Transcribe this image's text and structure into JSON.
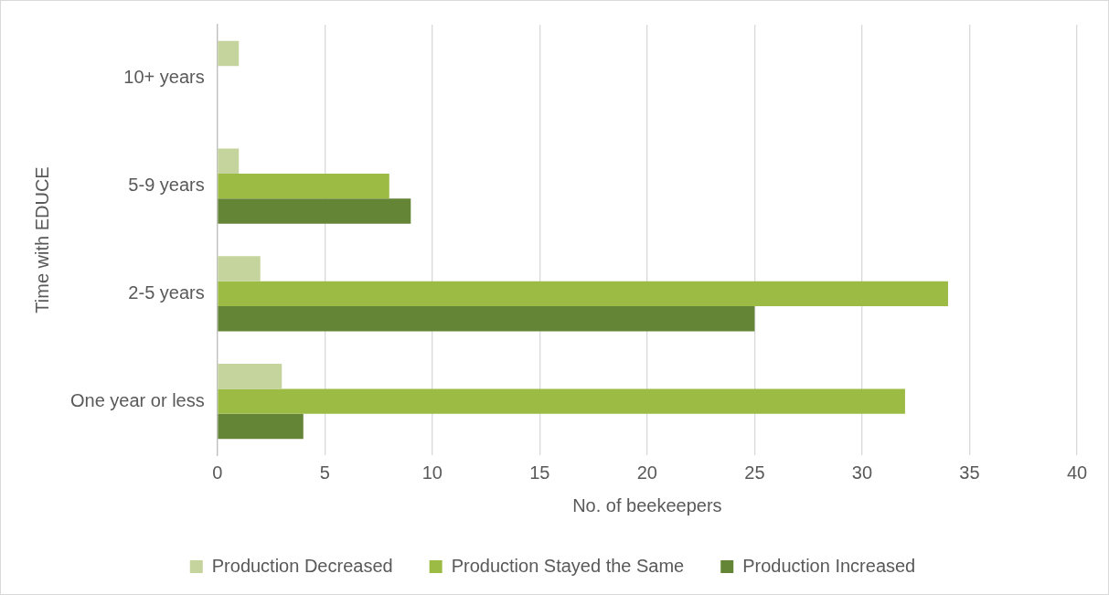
{
  "chart_data": {
    "type": "bar",
    "orientation": "horizontal",
    "xlabel": "No. of beekeepers",
    "ylabel": "Time with EDUCE",
    "categories": [
      "10+ years",
      "5-9 years",
      "2-5 years",
      "One year or less"
    ],
    "series": [
      {
        "name": "Production Decreased",
        "color": "#c5d49c",
        "values": [
          1,
          1,
          2,
          3
        ]
      },
      {
        "name": "Production Stayed the Same",
        "color": "#9bbb45",
        "values": [
          0,
          8,
          34,
          32
        ]
      },
      {
        "name": "Production Increased",
        "color": "#648436",
        "values": [
          0,
          9,
          25,
          4
        ]
      }
    ],
    "xlim": [
      0,
      40
    ],
    "xticks": [
      0,
      5,
      10,
      15,
      20,
      25,
      30,
      35,
      40
    ],
    "grid": "x",
    "legend": "bottom"
  }
}
